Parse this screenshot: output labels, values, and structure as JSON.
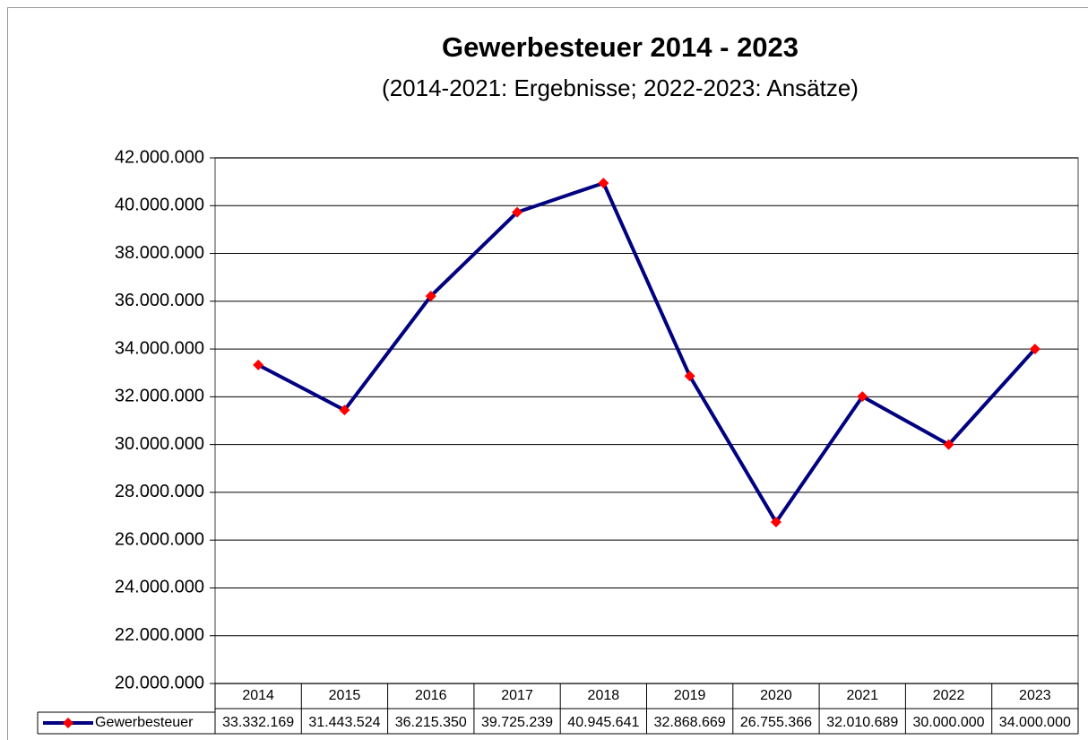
{
  "chart_data": {
    "type": "line",
    "title": "Gewerbesteuer 2014 - 2023",
    "subtitle": "(2014-2021: Ergebnisse; 2022-2023: Ansätze)",
    "categories": [
      "2014",
      "2015",
      "2016",
      "2017",
      "2018",
      "2019",
      "2020",
      "2021",
      "2022",
      "2023"
    ],
    "series": [
      {
        "name": "Gewerbesteuer",
        "color": "#000080",
        "marker_color": "#ff0000",
        "values": [
          33332169,
          31443524,
          36215350,
          39725239,
          40945641,
          32868669,
          26755366,
          32010689,
          30000000,
          34000000
        ],
        "value_labels": [
          "33.332.169",
          "31.443.524",
          "36.215.350",
          "39.725.239",
          "40.945.641",
          "32.868.669",
          "26.755.366",
          "32.010.689",
          "30.000.000",
          "34.000.000"
        ]
      }
    ],
    "ylim": [
      20000000,
      42000000
    ],
    "yticks": [
      {
        "value": 20000000,
        "label": "20.000.000"
      },
      {
        "value": 22000000,
        "label": "22.000.000"
      },
      {
        "value": 24000000,
        "label": "24.000.000"
      },
      {
        "value": 26000000,
        "label": "26.000.000"
      },
      {
        "value": 28000000,
        "label": "28.000.000"
      },
      {
        "value": 30000000,
        "label": "30.000.000"
      },
      {
        "value": 32000000,
        "label": "32.000.000"
      },
      {
        "value": 34000000,
        "label": "34.000.000"
      },
      {
        "value": 36000000,
        "label": "36.000.000"
      },
      {
        "value": 38000000,
        "label": "38.000.000"
      },
      {
        "value": 40000000,
        "label": "40.000.000"
      },
      {
        "value": 42000000,
        "label": "42.000.000"
      }
    ],
    "grid": true
  }
}
